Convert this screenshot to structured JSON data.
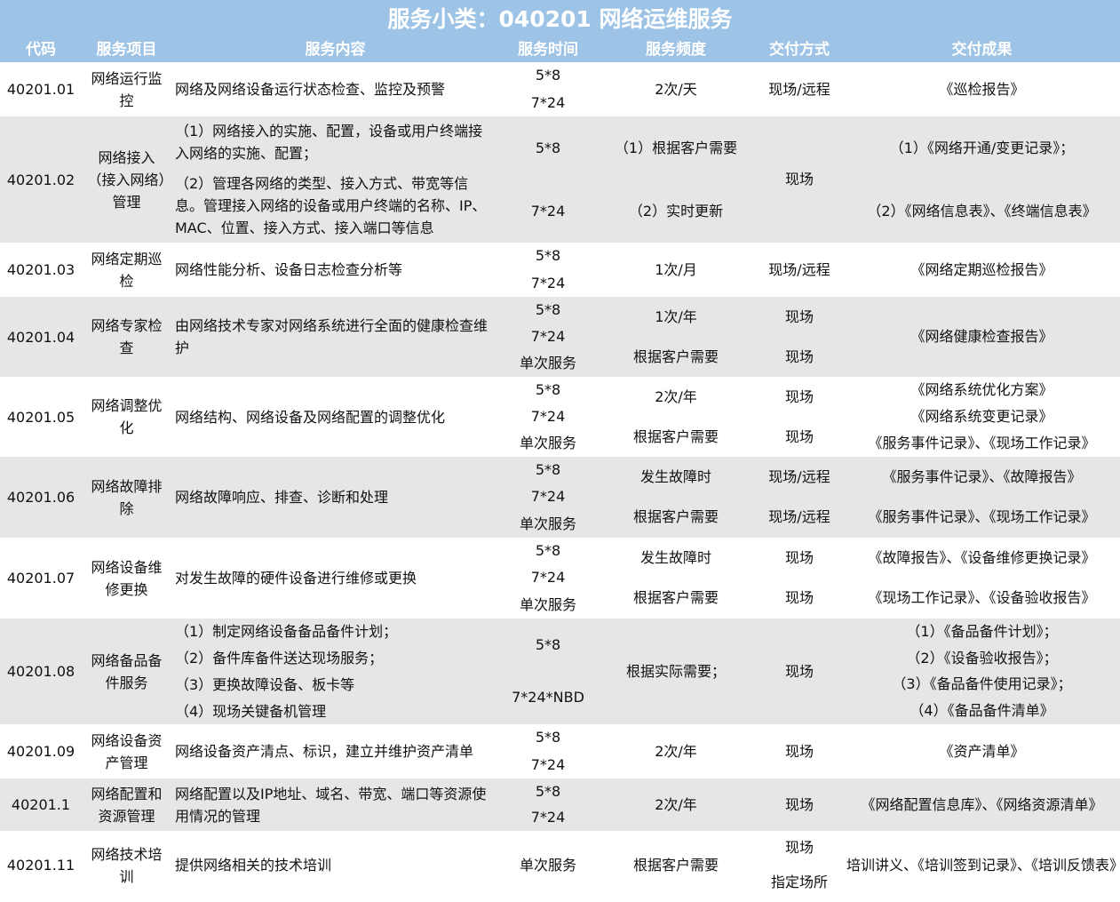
{
  "title": "服务小类：040201 网络运维服务",
  "columns": [
    "代码",
    "服务项目",
    "服务内容",
    "服务时间",
    "服务频度",
    "交付方式",
    "交付成果"
  ],
  "colors": {
    "header_bg": "#9dc3e6",
    "alt_row_bg": "#e6e6e6",
    "header_text": "#ffffff"
  },
  "rows": [
    {
      "code": "40201.01",
      "item": "网络运行监控",
      "content": [
        "网络及网络设备运行状态检查、监控及预警"
      ],
      "time": [
        "5*8",
        "7*24"
      ],
      "freq": [
        "2次/天"
      ],
      "delivery": [
        "现场/远程"
      ],
      "result": [
        "《巡检报告》"
      ]
    },
    {
      "code": "40201.02",
      "item": "网络接入（接入网络）管理",
      "content": [
        "（1）网络接入的实施、配置，设备或用户终端接入网络的实施、配置；",
        "（2）管理各网络的类型、接入方式、带宽等信息。管理接入网络的设备或用户终端的名称、IP、MAC、位置、接入方式、接入端口等信息"
      ],
      "time": [
        "5*8",
        "7*24"
      ],
      "freq": [
        "（1）根据客户需要",
        "（2）实时更新"
      ],
      "delivery": [
        "现场"
      ],
      "result": [
        "（1）《网络开通/变更记录》；",
        "（2）《网络信息表》、《终端信息表》"
      ]
    },
    {
      "code": "40201.03",
      "item": "网络定期巡检",
      "content": [
        "网络性能分析、设备日志检查分析等"
      ],
      "time": [
        "5*8",
        "7*24"
      ],
      "freq": [
        "1次/月"
      ],
      "delivery": [
        "现场/远程"
      ],
      "result": [
        "《网络定期巡检报告》"
      ]
    },
    {
      "code": "40201.04",
      "item": "网络专家检查",
      "content": [
        "由网络技术专家对网络系统进行全面的健康检查维护"
      ],
      "time": [
        "5*8",
        "7*24",
        "单次服务"
      ],
      "freq": [
        "1次/年",
        "根据客户需要"
      ],
      "delivery": [
        "现场",
        "现场"
      ],
      "result": [
        "《网络健康检查报告》"
      ]
    },
    {
      "code": "40201.05",
      "item": "网络调整优化",
      "content": [
        "网络结构、网络设备及网络配置的调整优化"
      ],
      "time": [
        "5*8",
        "7*24",
        "单次服务"
      ],
      "freq": [
        "2次/年",
        "根据客户需要"
      ],
      "delivery": [
        "现场",
        "现场"
      ],
      "result": [
        "《网络系统优化方案》",
        "《网络系统变更记录》",
        "《服务事件记录》、《现场工作记录》"
      ]
    },
    {
      "code": "40201.06",
      "item": "网络故障排除",
      "content": [
        "网络故障响应、排查、诊断和处理"
      ],
      "time": [
        "5*8",
        "7*24",
        "单次服务"
      ],
      "freq": [
        "发生故障时",
        "根据客户需要"
      ],
      "delivery": [
        "现场/远程",
        "现场/远程"
      ],
      "result": [
        "《服务事件记录》、《故障报告》",
        "《服务事件记录》、《现场工作记录》"
      ]
    },
    {
      "code": "40201.07",
      "item": "网络设备维修更换",
      "content": [
        "对发生故障的硬件设备进行维修或更换"
      ],
      "time": [
        "5*8",
        "7*24",
        "单次服务"
      ],
      "freq": [
        "发生故障时",
        "根据客户需要"
      ],
      "delivery": [
        "现场",
        "现场"
      ],
      "result": [
        "《故障报告》、《设备维修更换记录》",
        "《现场工作记录》、《设备验收报告》"
      ]
    },
    {
      "code": "40201.08",
      "item": "网络备品备件服务",
      "content": [
        "（1）制定网络设备备品备件计划；",
        "（2）备件库备件送达现场服务；",
        "（3）更换故障设备、板卡等",
        "（4）现场关键备机管理"
      ],
      "time": [
        "5*8",
        "7*24*NBD"
      ],
      "freq": [
        "根据实际需要；"
      ],
      "delivery": [
        "现场"
      ],
      "result": [
        "（1）《备品备件计划》；",
        "（2）《设备验收报告》；",
        "（3）《备品备件使用记录》；",
        "（4）《备品备件清单》"
      ]
    },
    {
      "code": "40201.09",
      "item": "网络设备资产管理",
      "content": [
        "网络设备资产清点、标识，建立并维护资产清单"
      ],
      "time": [
        "5*8",
        "7*24"
      ],
      "freq": [
        "2次/年"
      ],
      "delivery": [
        "现场"
      ],
      "result": [
        "《资产清单》"
      ]
    },
    {
      "code": "40201.1",
      "item": "网络配置和资源管理",
      "content": [
        "网络配置以及IP地址、域名、带宽、端口等资源使用情况的管理"
      ],
      "time": [
        "5*8",
        "7*24"
      ],
      "freq": [
        "2次/年"
      ],
      "delivery": [
        "现场"
      ],
      "result": [
        "《网络配置信息库》、《网络资源清单》"
      ]
    },
    {
      "code": "40201.11",
      "item": "网络技术培训",
      "content": [
        "提供网络相关的技术培训"
      ],
      "time": [
        "单次服务"
      ],
      "freq": [
        "根据客户需要"
      ],
      "delivery": [
        "现场",
        "指定场所"
      ],
      "result": [
        "培训讲义、《培训签到记录》、《培训反馈表》"
      ]
    }
  ]
}
